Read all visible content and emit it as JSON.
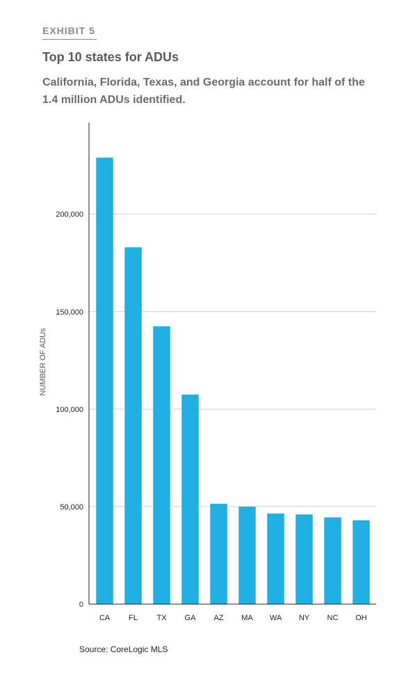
{
  "header": {
    "exhibit": "EXHIBIT 5",
    "title": "Top 10 states for ADUs",
    "subtitle": "California, Florida, Texas, and Georgia account for half of the 1.4 million ADUs identified."
  },
  "source": "Source: CoreLogic MLS",
  "colors": {
    "bar": "#1fb0e6",
    "grid": "#cfcfcf",
    "axis": "#222222"
  },
  "chart_data": {
    "type": "bar",
    "categories": [
      "CA",
      "FL",
      "TX",
      "GA",
      "AZ",
      "MA",
      "WA",
      "NY",
      "NC",
      "OH"
    ],
    "values": [
      229000,
      183000,
      142500,
      107500,
      51500,
      50000,
      46500,
      46000,
      44500,
      43000
    ],
    "ylabel": "NUMBER OF ADUs",
    "yticks": [
      0,
      50000,
      100000,
      150000,
      200000
    ],
    "ytick_labels": [
      "0",
      "50,000",
      "100,000",
      "150,000",
      "200,000"
    ],
    "ylim": [
      0,
      247000
    ],
    "grid": true
  }
}
